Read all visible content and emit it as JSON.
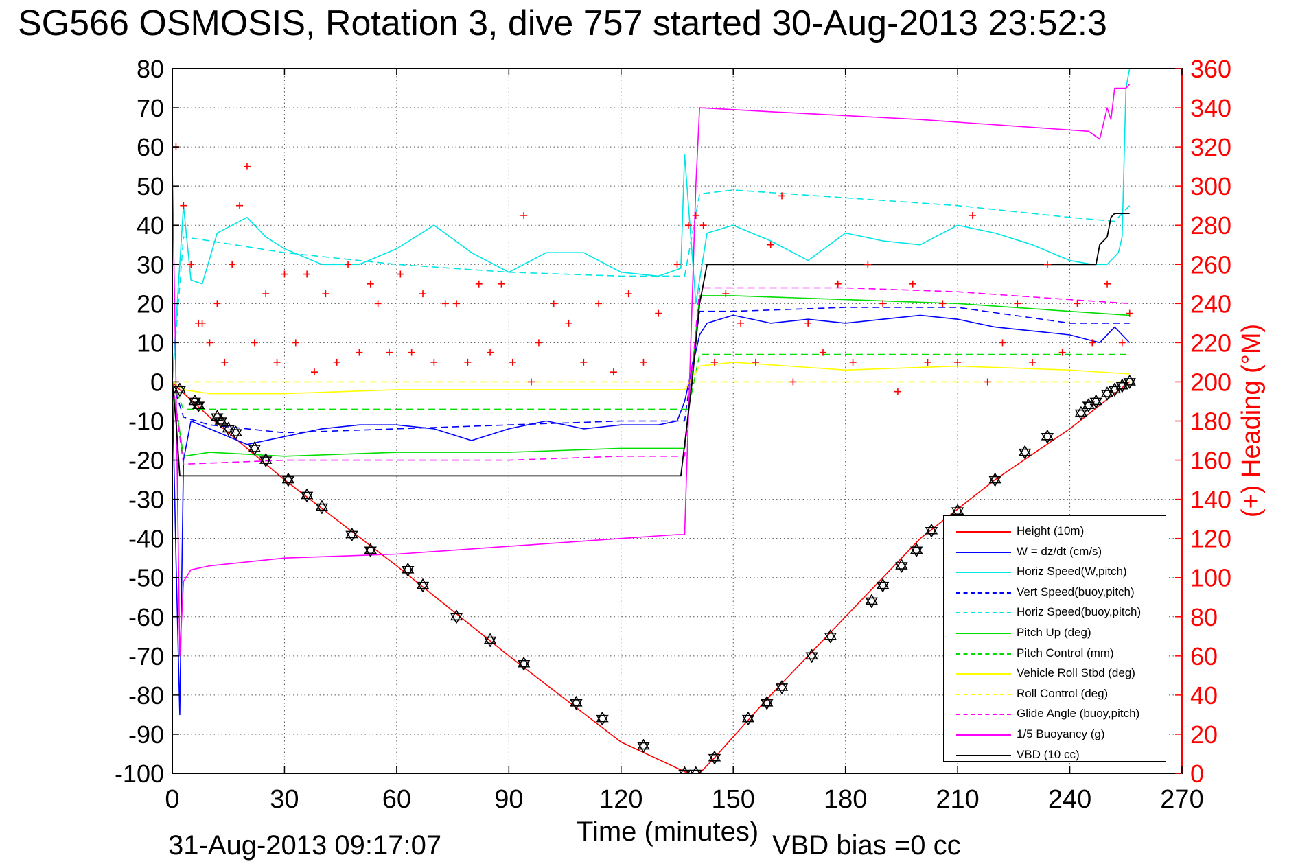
{
  "title": "SG566 OSMOSIS, Rotation 3, dive 757 started 30-Aug-2013 23:52:3",
  "footer": {
    "timestamp": "31-Aug-2013 09:17:07",
    "vbd_bias": "VBD bias =0 cc"
  },
  "colors": {
    "red": "#ff0000",
    "blue": "#0000ff",
    "cyan": "#00e5e5",
    "green": "#00dd00",
    "yellow": "#ffff00",
    "magenta": "#ff00ff",
    "black": "#000000",
    "grid": "#555555"
  },
  "chart_data": {
    "type": "line",
    "xlabel": "Time (minutes)",
    "ylabel": "",
    "y2label": "(+) Heading (°M)",
    "xlim": [
      0,
      270
    ],
    "ylim": [
      -100,
      80
    ],
    "y2lim": [
      0,
      360
    ],
    "xticks": [
      0,
      30,
      60,
      90,
      120,
      150,
      180,
      210,
      240,
      270
    ],
    "yticks": [
      80,
      70,
      60,
      50,
      40,
      30,
      20,
      10,
      0,
      -10,
      -20,
      -30,
      -40,
      -50,
      -60,
      -70,
      -80,
      -90,
      -100
    ],
    "y2ticks": [
      360,
      340,
      320,
      300,
      280,
      260,
      240,
      220,
      200,
      180,
      160,
      140,
      120,
      100,
      80,
      60,
      40,
      20,
      0
    ],
    "grid": true,
    "legend_position": "lower-right",
    "series": [
      {
        "name": "Height (10m)",
        "color": "#ff0000",
        "style": "solid",
        "x": [
          0,
          2,
          10,
          30,
          60,
          90,
          120,
          138,
          141,
          145,
          160,
          180,
          200,
          220,
          240,
          256
        ],
        "y": [
          0,
          -2,
          -9,
          -25,
          -47,
          -70,
          -92,
          -100,
          -100,
          -96,
          -80,
          -60,
          -40,
          -25,
          -12,
          0
        ]
      },
      {
        "name": "W = dz/dt (cm/s)",
        "color": "#0000ff",
        "style": "solid",
        "x": [
          0,
          1,
          2,
          3,
          5,
          10,
          20,
          30,
          40,
          50,
          60,
          70,
          80,
          90,
          100,
          110,
          120,
          130,
          135,
          137,
          141,
          143,
          150,
          160,
          170,
          180,
          190,
          200,
          210,
          220,
          230,
          240,
          248,
          252,
          256
        ],
        "y": [
          0,
          -45,
          -85,
          -20,
          -10,
          -12,
          -16,
          -14,
          -12,
          -11,
          -11,
          -12,
          -15,
          -12,
          -10,
          -12,
          -11,
          -11,
          -10,
          -5,
          12,
          15,
          17,
          15,
          16,
          15,
          16,
          17,
          16,
          14,
          13,
          12,
          10,
          14,
          10
        ]
      },
      {
        "name": "Horiz Speed(W,pitch)",
        "color": "#00e5e5",
        "style": "solid",
        "x": [
          0,
          3,
          5,
          8,
          12,
          20,
          25,
          30,
          40,
          50,
          60,
          70,
          80,
          90,
          100,
          110,
          120,
          130,
          136,
          137,
          140,
          143,
          150,
          160,
          170,
          180,
          190,
          200,
          210,
          220,
          230,
          240,
          246,
          250,
          253,
          254,
          255,
          256
        ],
        "y": [
          0,
          45,
          26,
          25,
          38,
          42,
          37,
          34,
          30,
          30,
          34,
          40,
          33,
          28,
          33,
          33,
          28,
          27,
          29,
          58,
          20,
          38,
          40,
          36,
          31,
          38,
          36,
          35,
          40,
          38,
          35,
          31,
          30,
          30,
          33,
          37,
          75,
          80
        ]
      },
      {
        "name": "Vert Speed(buoy,pitch)",
        "color": "#0000ff",
        "style": "dashed",
        "x": [
          0,
          3,
          10,
          30,
          60,
          90,
          120,
          137,
          141,
          150,
          180,
          210,
          240,
          256
        ],
        "y": [
          0,
          -9,
          -11,
          -13,
          -12,
          -11,
          -10,
          -10,
          18,
          18,
          19,
          19,
          15,
          15
        ]
      },
      {
        "name": "Horiz Speed(buoy,pitch)",
        "color": "#00e5e5",
        "style": "dashed",
        "x": [
          0,
          3,
          10,
          30,
          60,
          90,
          120,
          137,
          141,
          150,
          180,
          210,
          240,
          252,
          256
        ],
        "y": [
          0,
          37,
          36,
          33,
          30,
          28,
          27,
          27,
          48,
          49,
          47,
          45,
          42,
          41,
          45
        ]
      },
      {
        "name": "Pitch Up (deg)",
        "color": "#00dd00",
        "style": "solid",
        "x": [
          0,
          3,
          10,
          30,
          60,
          90,
          120,
          137,
          141,
          150,
          180,
          210,
          240,
          256
        ],
        "y": [
          0,
          -19,
          -18,
          -19,
          -18,
          -18,
          -17,
          -17,
          22,
          22,
          21,
          20,
          18,
          17
        ]
      },
      {
        "name": "Pitch Control (mm)",
        "color": "#00dd00",
        "style": "dashed",
        "x": [
          0,
          3,
          137,
          138,
          141,
          256
        ],
        "y": [
          0,
          -7,
          -7,
          -7,
          7,
          7
        ]
      },
      {
        "name": "Vehicle Roll Stbd (deg)",
        "color": "#ffff00",
        "style": "solid",
        "x": [
          0,
          3,
          10,
          30,
          60,
          90,
          120,
          137,
          141,
          150,
          180,
          210,
          240,
          256
        ],
        "y": [
          0,
          -2,
          -3,
          -3,
          -2,
          -2,
          -2,
          -2,
          4,
          5,
          3,
          4,
          3,
          2
        ]
      },
      {
        "name": "Roll Control (deg)",
        "color": "#ffff00",
        "style": "dashed",
        "x": [
          0,
          256
        ],
        "y": [
          0,
          0
        ]
      },
      {
        "name": "Glide Angle (buoy,pitch)",
        "color": "#ff00ff",
        "style": "dashed",
        "x": [
          0,
          3,
          30,
          60,
          90,
          120,
          137,
          141,
          180,
          210,
          240,
          256
        ],
        "y": [
          0,
          -21,
          -20,
          -20,
          -20,
          -19,
          -19,
          24,
          24,
          23,
          21,
          20
        ]
      },
      {
        "name": "1/5 Buoyancy (g)",
        "color": "#ff00ff",
        "style": "solid",
        "x": [
          0,
          1,
          2,
          3,
          5,
          10,
          30,
          60,
          90,
          120,
          135,
          137,
          140,
          141,
          160,
          200,
          245,
          248,
          249,
          250,
          251,
          252,
          255,
          256
        ],
        "y": [
          55,
          0,
          -70,
          -51,
          -48,
          -47,
          -45,
          -44,
          -42,
          -40,
          -39,
          -39,
          50,
          70,
          69,
          67,
          64,
          62,
          66,
          70,
          67,
          75,
          75,
          76
        ]
      },
      {
        "name": "VBD (10 cc)",
        "color": "#000000",
        "style": "solid",
        "x": [
          0,
          1,
          2,
          136,
          139,
          141,
          143,
          240,
          247,
          248,
          250,
          251,
          252,
          256
        ],
        "y": [
          0,
          -10,
          -24,
          -24,
          0,
          20,
          30,
          30,
          30,
          35,
          37,
          42,
          43,
          43
        ]
      }
    ],
    "heading": {
      "name": "(+) Heading (°M)",
      "color": "#ff0000",
      "marker": "+",
      "axis": "right",
      "x": [
        0,
        1,
        3,
        5,
        7,
        8,
        10,
        12,
        14,
        16,
        18,
        20,
        22,
        25,
        28,
        30,
        33,
        36,
        38,
        41,
        44,
        47,
        50,
        53,
        55,
        58,
        61,
        64,
        67,
        70,
        73,
        76,
        79,
        82,
        85,
        88,
        91,
        94,
        96,
        98,
        102,
        106,
        110,
        114,
        118,
        122,
        126,
        130,
        135,
        138,
        140,
        142,
        145,
        148,
        152,
        156,
        160,
        163,
        166,
        170,
        174,
        178,
        182,
        186,
        190,
        194,
        198,
        202,
        206,
        210,
        214,
        218,
        222,
        226,
        230,
        234,
        238,
        242,
        246,
        250,
        254,
        256
      ],
      "y": [
        370,
        320,
        290,
        260,
        230,
        230,
        220,
        240,
        210,
        260,
        290,
        310,
        220,
        245,
        210,
        255,
        220,
        255,
        205,
        245,
        210,
        260,
        215,
        250,
        240,
        215,
        255,
        215,
        245,
        210,
        240,
        240,
        210,
        250,
        215,
        250,
        210,
        285,
        200,
        220,
        240,
        230,
        210,
        240,
        205,
        245,
        210,
        235,
        260,
        280,
        285,
        280,
        210,
        245,
        230,
        210,
        270,
        295,
        200,
        230,
        215,
        250,
        210,
        260,
        240,
        195,
        250,
        210,
        240,
        210,
        285,
        200,
        220,
        240,
        210,
        260,
        215,
        240,
        220,
        250,
        220,
        235
      ]
    },
    "markers_on_height": {
      "symbol": "hexagram",
      "color": "#000000",
      "x": [
        2,
        6,
        7,
        12,
        13,
        15,
        17,
        22,
        25,
        31,
        36,
        40,
        48,
        53,
        63,
        67,
        76,
        85,
        94,
        108,
        115,
        126,
        137,
        140,
        145,
        154,
        159,
        163,
        171,
        176,
        187,
        190,
        195,
        199,
        203,
        210,
        220,
        228,
        234,
        243,
        245,
        247,
        250,
        252,
        254,
        256
      ],
      "y": [
        -2,
        -5,
        -6,
        -9,
        -10,
        -12,
        -13,
        -17,
        -20,
        -25,
        -29,
        -32,
        -39,
        -43,
        -48,
        -52,
        -60,
        -66,
        -72,
        -82,
        -86,
        -93,
        -100,
        -100,
        -96,
        -86,
        -82,
        -78,
        -70,
        -65,
        -56,
        -52,
        -47,
        -43,
        -38,
        -33,
        -25,
        -18,
        -14,
        -8,
        -6,
        -5,
        -3,
        -2,
        -1,
        0
      ]
    }
  }
}
